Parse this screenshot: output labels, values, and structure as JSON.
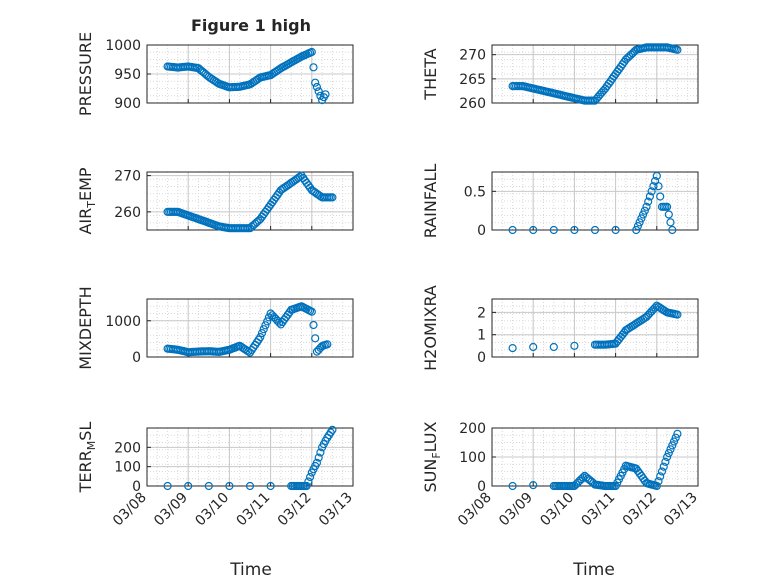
{
  "figure": {
    "title": "Figure 1 high",
    "xlabel": "Time",
    "x_ticks": [
      "03/08",
      "03/09",
      "03/10",
      "03/11",
      "03/12",
      "03/13"
    ],
    "marker_color": "#0072BD"
  },
  "chart_data": [
    {
      "type": "scatter",
      "ylabel": "PRESSURE",
      "ylim": [
        900,
        1000
      ],
      "yticks": [
        "900",
        "950",
        "1000"
      ],
      "grid": true,
      "x": [
        "03/08 12:00",
        "03/08 18:00",
        "03/09 00:00",
        "03/09 06:00",
        "03/09 12:00",
        "03/09 18:00",
        "03/10 00:00",
        "03/10 06:00",
        "03/10 12:00",
        "03/10 18:00",
        "03/11 00:00",
        "03/11 06:00",
        "03/11 12:00",
        "03/11 18:00",
        "03/12 00:00",
        "03/12 02:00",
        "03/12 04:00",
        "03/12 06:00",
        "03/12 08:00"
      ],
      "y": [
        963,
        961,
        963,
        960,
        945,
        933,
        927,
        928,
        932,
        944,
        948,
        960,
        970,
        980,
        988,
        935,
        920,
        905,
        915
      ]
    },
    {
      "type": "scatter",
      "ylabel": "THETA",
      "ylim": [
        260,
        272
      ],
      "yticks": [
        "260",
        "265",
        "270"
      ],
      "grid": true,
      "x": [
        "03/08 12:00",
        "03/08 18:00",
        "03/09 00:00",
        "03/09 06:00",
        "03/09 12:00",
        "03/09 18:00",
        "03/10 00:00",
        "03/10 06:00",
        "03/10 12:00",
        "03/10 18:00",
        "03/11 00:00",
        "03/11 06:00",
        "03/11 12:00",
        "03/11 18:00",
        "03/12 00:00",
        "03/12 06:00",
        "03/12 12:00"
      ],
      "y": [
        263.5,
        263.5,
        263,
        262.5,
        262,
        261.5,
        261,
        260.5,
        260.5,
        263,
        266,
        269,
        271,
        271.5,
        271.5,
        271.5,
        271
      ]
    },
    {
      "type": "scatter",
      "ylabel": "AIR_TEMP",
      "ylim": [
        255,
        271
      ],
      "yticks": [
        "260",
        "270"
      ],
      "grid": true,
      "x": [
        "03/08 12:00",
        "03/08 18:00",
        "03/09 00:00",
        "03/09 06:00",
        "03/09 12:00",
        "03/09 18:00",
        "03/10 00:00",
        "03/10 06:00",
        "03/10 12:00",
        "03/10 18:00",
        "03/11 00:00",
        "03/11 06:00",
        "03/11 12:00",
        "03/11 18:00",
        "03/12 00:00",
        "03/12 06:00",
        "03/12 12:00"
      ],
      "y": [
        260,
        260,
        259,
        258,
        257,
        256,
        255.5,
        255.5,
        255.5,
        258,
        262,
        266,
        268,
        270,
        266,
        264,
        264
      ]
    },
    {
      "type": "scatter",
      "ylabel": "RAINFALL",
      "ylim": [
        0,
        0.75
      ],
      "yticks": [
        "0",
        "0.5"
      ],
      "grid": true,
      "x": [
        "03/08 12:00",
        "03/09 00:00",
        "03/09 12:00",
        "03/10 00:00",
        "03/10 12:00",
        "03/11 00:00",
        "03/11 12:00",
        "03/11 18:00",
        "03/12 00:00",
        "03/12 03:00",
        "03/12 06:00",
        "03/12 09:00"
      ],
      "y": [
        0,
        0,
        0,
        0,
        0,
        0,
        0,
        0.3,
        0.7,
        0.3,
        0.3,
        0
      ]
    },
    {
      "type": "scatter",
      "ylabel": "MIXDEPTH",
      "ylim": [
        0,
        1600
      ],
      "yticks": [
        "0",
        "1000"
      ],
      "grid": true,
      "x": [
        "03/08 12:00",
        "03/08 18:00",
        "03/09 00:00",
        "03/09 06:00",
        "03/09 12:00",
        "03/09 18:00",
        "03/10 00:00",
        "03/10 06:00",
        "03/10 12:00",
        "03/10 18:00",
        "03/11 00:00",
        "03/11 06:00",
        "03/11 12:00",
        "03/11 18:00",
        "03/12 00:00",
        "03/12 03:00",
        "03/12 06:00",
        "03/12 09:00"
      ],
      "y": [
        230,
        200,
        130,
        150,
        160,
        140,
        200,
        310,
        120,
        550,
        1200,
        900,
        1300,
        1400,
        1250,
        150,
        300,
        350
      ]
    },
    {
      "type": "scatter",
      "ylabel": "H2OMIXRA",
      "ylim": [
        0,
        2.6
      ],
      "yticks": [
        "0",
        "1",
        "2"
      ],
      "grid": true,
      "x": [
        "03/08 12:00",
        "03/09 00:00",
        "03/09 12:00",
        "03/10 00:00",
        "03/10 12:00",
        "03/10 18:00",
        "03/11 00:00",
        "03/11 06:00",
        "03/11 12:00",
        "03/11 18:00",
        "03/12 00:00",
        "03/12 06:00",
        "03/12 12:00"
      ],
      "y": [
        0.4,
        0.45,
        0.45,
        0.5,
        0.55,
        0.55,
        0.6,
        1.2,
        1.5,
        1.8,
        2.3,
        2.0,
        1.9
      ]
    },
    {
      "type": "scatter",
      "ylabel": "TERR_MSL",
      "ylim": [
        0,
        300
      ],
      "yticks": [
        "0",
        "100",
        "200"
      ],
      "grid": true,
      "x": [
        "03/08 12:00",
        "03/09 00:00",
        "03/09 12:00",
        "03/10 00:00",
        "03/10 12:00",
        "03/11 00:00",
        "03/11 12:00",
        "03/11 21:00",
        "03/12 00:00",
        "03/12 03:00",
        "03/12 06:00",
        "03/12 09:00",
        "03/12 12:00"
      ],
      "y": [
        0,
        0,
        0,
        0,
        0,
        0,
        0,
        0,
        70,
        120,
        200,
        250,
        290
      ]
    },
    {
      "type": "scatter",
      "ylabel": "SUN_FLUX",
      "ylim": [
        0,
        200
      ],
      "yticks": [
        "0",
        "100",
        "200"
      ],
      "grid": true,
      "x": [
        "03/08 12:00",
        "03/09 00:00",
        "03/09 12:00",
        "03/09 18:00",
        "03/10 00:00",
        "03/10 06:00",
        "03/10 12:00",
        "03/10 18:00",
        "03/11 00:00",
        "03/11 06:00",
        "03/11 12:00",
        "03/11 18:00",
        "03/12 00:00",
        "03/12 06:00",
        "03/12 12:00"
      ],
      "y": [
        0,
        3,
        0,
        0,
        0,
        35,
        5,
        0,
        0,
        70,
        60,
        10,
        0,
        100,
        180
      ]
    }
  ]
}
